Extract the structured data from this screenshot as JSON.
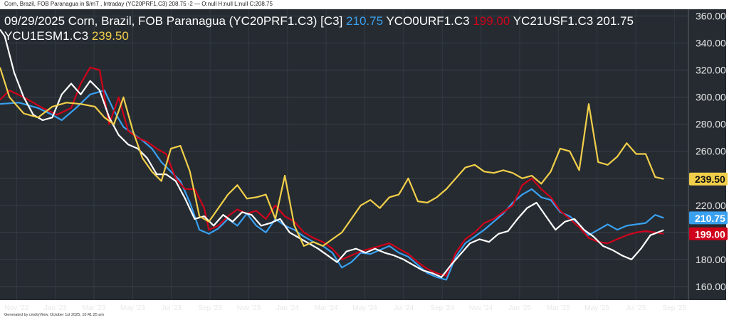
{
  "header": {
    "topbar_text": "Corn, Brazil, FOB Paranagua in $/mT , Intraday (YC20PRF1.C3) 208.75 -2 — O:null H:null L:null C:208.75"
  },
  "footer": {
    "generated_text": "Generated by cmdtyView, October 1st 2025, 10:41:25 am"
  },
  "legend": {
    "main": "09/29/2025 Corn, Brazil, FOB Paranagua (YC20PRF1.C3) [C3]",
    "v1": "210.75",
    "n2": "YCO0URF1.C3",
    "v2": "199.00",
    "n3": "YC21USF1.C3 201.75",
    "n4": "YCU1ESM1.C3",
    "v4": "239.50"
  },
  "chart_data": {
    "type": "line",
    "title": "09/29/2025 Corn, Brazil, FOB Paranagua (YC20PRF1.C3) [C3]",
    "y_ticks": [
      160,
      180,
      200,
      220,
      240,
      260,
      280,
      300,
      320,
      340,
      360
    ],
    "ylim": [
      150,
      365
    ],
    "x_tick_labels": [
      "Nov '22",
      "Jan '23",
      "Mar '23",
      "May '23",
      "Jul '23",
      "Sep '23",
      "Nov '23",
      "Jan '24",
      "Mar '24",
      "May '24",
      "Jul '24",
      "Sep '24",
      "Nov '24",
      "Jan '25",
      "Mar '25",
      "May '25",
      "Jul '25",
      "Sep '25"
    ],
    "grid": true,
    "background": "#252b31",
    "last_value_badges": [
      {
        "label": "239.50",
        "color": "#f2cf4a"
      },
      {
        "label": "210.75",
        "color": "#3aa0f0"
      },
      {
        "label": "199.00",
        "color": "#d0021b"
      }
    ],
    "series": [
      {
        "name": "YC20PRF1.C3",
        "color": "#3aa0f0",
        "values": [
          [
            0,
            295
          ],
          [
            4,
            296
          ],
          [
            8,
            292
          ],
          [
            11,
            287
          ],
          [
            13,
            283
          ],
          [
            16,
            292
          ],
          [
            19,
            302
          ],
          [
            22,
            305
          ],
          [
            24,
            290
          ],
          [
            26,
            278
          ],
          [
            28,
            273
          ],
          [
            30,
            268
          ],
          [
            32,
            262
          ],
          [
            34,
            252
          ],
          [
            36,
            245
          ],
          [
            38,
            238
          ],
          [
            40,
            222
          ],
          [
            42,
            202
          ],
          [
            44,
            199
          ],
          [
            46,
            203
          ],
          [
            48,
            210
          ],
          [
            50,
            205
          ],
          [
            52,
            214
          ],
          [
            54,
            205
          ],
          [
            56,
            200
          ],
          [
            58,
            210
          ],
          [
            60,
            205
          ],
          [
            62,
            202
          ],
          [
            64,
            197
          ],
          [
            66,
            193
          ],
          [
            68,
            190
          ],
          [
            70,
            185
          ],
          [
            72,
            174
          ],
          [
            74,
            178
          ],
          [
            76,
            185
          ],
          [
            78,
            184
          ],
          [
            80,
            187
          ],
          [
            82,
            190
          ],
          [
            84,
            185
          ],
          [
            86,
            182
          ],
          [
            88,
            176
          ],
          [
            90,
            170
          ],
          [
            92,
            167
          ],
          [
            94,
            165
          ],
          [
            96,
            182
          ],
          [
            98,
            192
          ],
          [
            100,
            197
          ],
          [
            102,
            202
          ],
          [
            104,
            208
          ],
          [
            106,
            214
          ],
          [
            108,
            222
          ],
          [
            110,
            228
          ],
          [
            112,
            232
          ],
          [
            114,
            226
          ],
          [
            116,
            224
          ],
          [
            118,
            215
          ],
          [
            120,
            212
          ],
          [
            122,
            206
          ],
          [
            124,
            198
          ],
          [
            126,
            202
          ],
          [
            128,
            206
          ],
          [
            130,
            202
          ],
          [
            132,
            205
          ],
          [
            134,
            206
          ],
          [
            136,
            207
          ],
          [
            138,
            213
          ],
          [
            139.8,
            210.75
          ]
        ]
      },
      {
        "name": "YCO0URF1.C3",
        "color": "#d0021b",
        "values": [
          [
            0,
            298
          ],
          [
            2,
            305
          ],
          [
            5,
            300
          ],
          [
            9,
            292
          ],
          [
            12,
            287
          ],
          [
            15,
            292
          ],
          [
            17,
            310
          ],
          [
            19,
            322
          ],
          [
            21,
            320
          ],
          [
            23,
            280
          ],
          [
            25,
            300
          ],
          [
            27,
            275
          ],
          [
            29,
            270
          ],
          [
            31,
            267
          ],
          [
            33,
            262
          ],
          [
            35,
            258
          ],
          [
            37,
            240
          ],
          [
            39,
            232
          ],
          [
            41,
            232
          ],
          [
            43,
            218
          ],
          [
            44,
            202
          ],
          [
            46,
            205
          ],
          [
            48,
            212
          ],
          [
            50,
            217
          ],
          [
            52,
            214
          ],
          [
            54,
            216
          ],
          [
            56,
            210
          ],
          [
            58,
            220
          ],
          [
            60,
            212
          ],
          [
            62,
            208
          ],
          [
            64,
            200
          ],
          [
            66,
            196
          ],
          [
            68,
            193
          ],
          [
            70,
            188
          ],
          [
            72,
            180
          ],
          [
            74,
            183
          ],
          [
            76,
            186
          ],
          [
            78,
            188
          ],
          [
            80,
            190
          ],
          [
            82,
            192
          ],
          [
            84,
            188
          ],
          [
            86,
            184
          ],
          [
            88,
            178
          ],
          [
            90,
            173
          ],
          [
            92,
            170
          ],
          [
            94,
            168
          ],
          [
            96,
            185
          ],
          [
            98,
            195
          ],
          [
            100,
            200
          ],
          [
            102,
            207
          ],
          [
            104,
            210
          ],
          [
            106,
            215
          ],
          [
            108,
            220
          ],
          [
            110,
            235
          ],
          [
            112,
            240
          ],
          [
            114,
            232
          ],
          [
            116,
            226
          ],
          [
            118,
            216
          ],
          [
            120,
            210
          ],
          [
            122,
            204
          ],
          [
            124,
            196
          ],
          [
            126,
            193
          ],
          [
            128,
            192
          ],
          [
            130,
            195
          ],
          [
            132,
            198
          ],
          [
            134,
            200
          ],
          [
            136,
            201
          ],
          [
            138,
            200
          ],
          [
            139.8,
            199.0
          ]
        ]
      },
      {
        "name": "YC21USF1.C3",
        "color": "#ffffff",
        "values": [
          [
            0,
            350
          ],
          [
            1,
            345
          ],
          [
            3,
            318
          ],
          [
            5,
            300
          ],
          [
            7,
            287
          ],
          [
            9,
            283
          ],
          [
            11,
            285
          ],
          [
            13,
            302
          ],
          [
            15,
            310
          ],
          [
            17,
            302
          ],
          [
            19,
            312
          ],
          [
            21,
            305
          ],
          [
            23,
            285
          ],
          [
            25,
            272
          ],
          [
            27,
            265
          ],
          [
            29,
            262
          ],
          [
            31,
            255
          ],
          [
            33,
            243
          ],
          [
            35,
            243
          ],
          [
            37,
            238
          ],
          [
            39,
            225
          ],
          [
            41,
            210
          ],
          [
            43,
            212
          ],
          [
            45,
            205
          ],
          [
            47,
            213
          ],
          [
            49,
            208
          ],
          [
            51,
            215
          ],
          [
            53,
            213
          ],
          [
            55,
            205
          ],
          [
            57,
            207
          ],
          [
            59,
            210
          ],
          [
            61,
            200
          ],
          [
            63,
            196
          ],
          [
            65,
            192
          ],
          [
            67,
            188
          ],
          [
            69,
            183
          ],
          [
            71,
            178
          ],
          [
            73,
            186
          ],
          [
            75,
            188
          ],
          [
            77,
            185
          ],
          [
            79,
            188
          ],
          [
            81,
            185
          ],
          [
            83,
            183
          ],
          [
            85,
            180
          ],
          [
            87,
            176
          ],
          [
            89,
            172
          ],
          [
            91,
            170
          ],
          [
            93,
            167
          ],
          [
            95,
            176
          ],
          [
            97,
            184
          ],
          [
            99,
            192
          ],
          [
            101,
            195
          ],
          [
            103,
            193
          ],
          [
            105,
            199
          ],
          [
            107,
            201
          ],
          [
            109,
            210
          ],
          [
            111,
            218
          ],
          [
            113,
            222
          ],
          [
            115,
            212
          ],
          [
            117,
            202
          ],
          [
            119,
            208
          ],
          [
            121,
            210
          ],
          [
            123,
            202
          ],
          [
            125,
            197
          ],
          [
            127,
            190
          ],
          [
            129,
            187
          ],
          [
            131,
            183
          ],
          [
            133,
            180
          ],
          [
            135,
            188
          ],
          [
            137,
            198
          ],
          [
            139.8,
            201.75
          ]
        ]
      },
      {
        "name": "YCU1ESM1.C3",
        "color": "#f2cf4a",
        "values": [
          [
            0,
            322
          ],
          [
            2,
            300
          ],
          [
            5,
            288
          ],
          [
            8,
            285
          ],
          [
            11,
            293
          ],
          [
            14,
            296
          ],
          [
            17,
            295
          ],
          [
            20,
            293
          ],
          [
            22,
            285
          ],
          [
            24,
            280
          ],
          [
            26,
            300
          ],
          [
            28,
            275
          ],
          [
            30,
            255
          ],
          [
            32,
            245
          ],
          [
            34,
            238
          ],
          [
            36,
            262
          ],
          [
            38,
            264
          ],
          [
            40,
            245
          ],
          [
            42,
            212
          ],
          [
            44,
            208
          ],
          [
            46,
            218
          ],
          [
            48,
            228
          ],
          [
            50,
            235
          ],
          [
            52,
            225
          ],
          [
            54,
            226
          ],
          [
            56,
            228
          ],
          [
            58,
            210
          ],
          [
            60,
            242
          ],
          [
            62,
            205
          ],
          [
            64,
            190
          ],
          [
            66,
            193
          ],
          [
            68,
            190
          ],
          [
            70,
            195
          ],
          [
            72,
            200
          ],
          [
            74,
            210
          ],
          [
            76,
            220
          ],
          [
            78,
            224
          ],
          [
            80,
            218
          ],
          [
            82,
            226
          ],
          [
            84,
            228
          ],
          [
            86,
            240
          ],
          [
            88,
            223
          ],
          [
            90,
            222
          ],
          [
            92,
            226
          ],
          [
            94,
            232
          ],
          [
            96,
            240
          ],
          [
            98,
            248
          ],
          [
            100,
            250
          ],
          [
            102,
            245
          ],
          [
            104,
            244
          ],
          [
            106,
            246
          ],
          [
            108,
            244
          ],
          [
            110,
            240
          ],
          [
            112,
            242
          ],
          [
            114,
            236
          ],
          [
            116,
            245
          ],
          [
            118,
            262
          ],
          [
            120,
            260
          ],
          [
            122,
            246
          ],
          [
            124,
            295
          ],
          [
            126,
            252
          ],
          [
            128,
            250
          ],
          [
            130,
            256
          ],
          [
            132,
            266
          ],
          [
            134,
            258
          ],
          [
            136,
            258
          ],
          [
            138,
            241
          ],
          [
            139.8,
            239.5
          ]
        ]
      }
    ]
  }
}
